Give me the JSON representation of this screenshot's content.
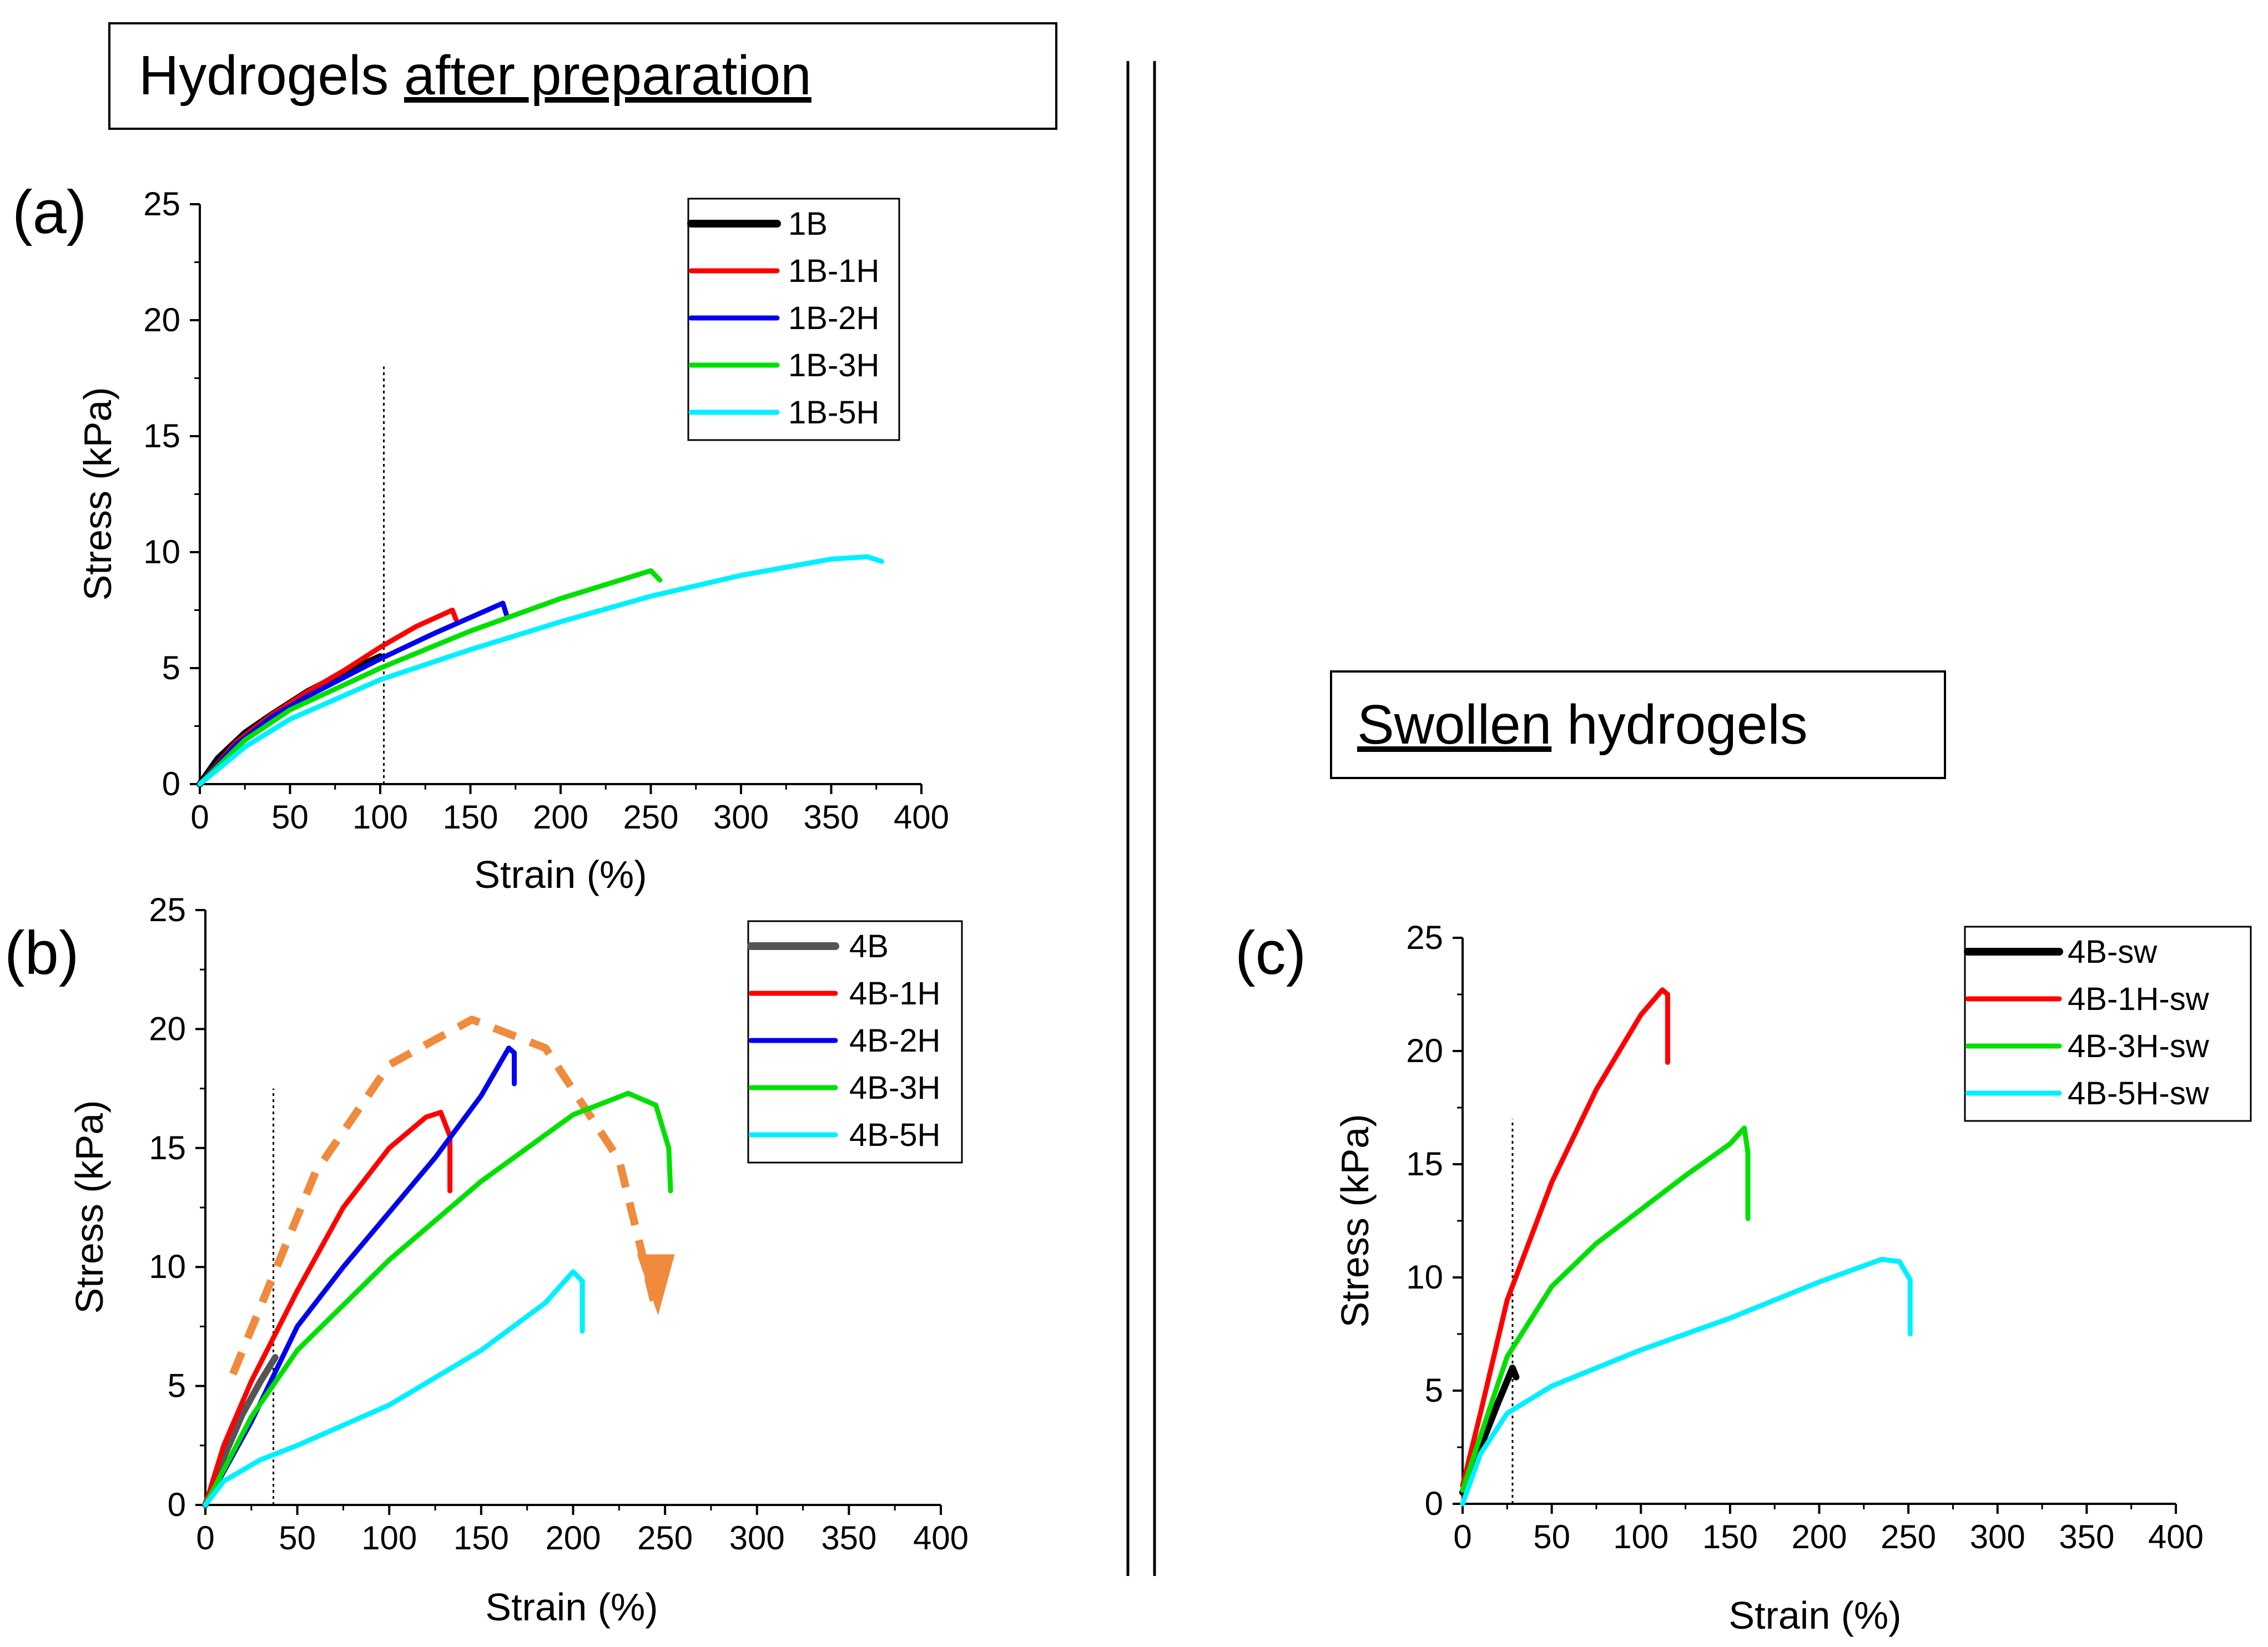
{
  "headers": {
    "left": {
      "underlined_part": "after preparation",
      "plain_part": "Hydrogels "
    },
    "right": {
      "underlined_part": "Swollen",
      "plain_part": " hydrogels"
    }
  },
  "colors": {
    "black": "#000000",
    "gray": "#555555",
    "red": "#ff0000",
    "blue": "#0000ee",
    "green": "#00e000",
    "cyan": "#00f0ff",
    "orange": "#f08a3c"
  },
  "chart_data": [
    {
      "panel": "(a)",
      "type": "line",
      "xlabel": "Strain (%)",
      "ylabel": "Stress (kPa)",
      "xlim": [
        0,
        400
      ],
      "ylim": [
        0,
        25
      ],
      "xticks": [
        "0",
        "50",
        "100",
        "150",
        "200",
        "250",
        "300",
        "350",
        "400"
      ],
      "yticks": [
        "0",
        "5",
        "10",
        "15",
        "20",
        "25"
      ],
      "ref_line": {
        "x": 102,
        "y_top": 18
      },
      "legend_position": "top-right",
      "series": [
        {
          "name": "1B",
          "color": "black",
          "x": [
            0,
            10,
            25,
            40,
            60,
            80,
            100
          ],
          "y": [
            0,
            1.1,
            2.2,
            3.0,
            4.0,
            4.8,
            5.5
          ]
        },
        {
          "name": "1B-1H",
          "color": "red",
          "x": [
            0,
            20,
            40,
            60,
            80,
            100,
            120,
            140,
            142
          ],
          "y": [
            0,
            1.8,
            3.0,
            4.0,
            4.9,
            5.9,
            6.8,
            7.5,
            7.1
          ]
        },
        {
          "name": "1B-2H",
          "color": "blue",
          "x": [
            0,
            20,
            40,
            60,
            80,
            100,
            130,
            168,
            170
          ],
          "y": [
            0,
            1.7,
            2.9,
            3.8,
            4.6,
            5.4,
            6.5,
            7.8,
            7.3
          ]
        },
        {
          "name": "1B-3H",
          "color": "green",
          "x": [
            0,
            25,
            50,
            100,
            150,
            200,
            250,
            255
          ],
          "y": [
            0,
            1.9,
            3.2,
            5.0,
            6.6,
            8.0,
            9.2,
            8.8
          ]
        },
        {
          "name": "1B-5H",
          "color": "cyan",
          "x": [
            0,
            25,
            50,
            100,
            150,
            200,
            250,
            300,
            350,
            370,
            378
          ],
          "y": [
            0,
            1.6,
            2.8,
            4.5,
            5.8,
            7.0,
            8.1,
            9.0,
            9.7,
            9.8,
            9.6
          ]
        }
      ]
    },
    {
      "panel": "(b)",
      "type": "line",
      "xlabel": "Strain (%)",
      "ylabel": "Stress (kPa)",
      "xlim": [
        0,
        400
      ],
      "ylim": [
        0,
        25
      ],
      "xticks": [
        "0",
        "50",
        "100",
        "150",
        "200",
        "250",
        "300",
        "350",
        "400"
      ],
      "yticks": [
        "0",
        "5",
        "10",
        "15",
        "20",
        "25"
      ],
      "ref_line": {
        "x": 37,
        "y_top": 17.5
      },
      "legend_position": "top-right",
      "trend_arrow": {
        "x": [
          15,
          60,
          100,
          145,
          185,
          225,
          245
        ],
        "y": [
          5.5,
          14,
          18.5,
          20.4,
          19.2,
          14.5,
          8.2
        ]
      },
      "series": [
        {
          "name": "4B",
          "color": "gray",
          "x": [
            0,
            10,
            20,
            30,
            38
          ],
          "y": [
            0,
            2.0,
            3.8,
            5.2,
            6.2
          ]
        },
        {
          "name": "4B-1H",
          "color": "red",
          "x": [
            0,
            10,
            25,
            50,
            75,
            100,
            120,
            128,
            133,
            133
          ],
          "y": [
            0,
            2.5,
            5.2,
            9.0,
            12.5,
            15.0,
            16.3,
            16.5,
            15.5,
            13.2
          ]
        },
        {
          "name": "4B-2H",
          "color": "blue",
          "x": [
            0,
            25,
            50,
            75,
            100,
            125,
            150,
            165,
            168,
            168
          ],
          "y": [
            0,
            3.5,
            7.5,
            10.0,
            12.3,
            14.6,
            17.2,
            19.2,
            19.0,
            17.7
          ]
        },
        {
          "name": "4B-3H",
          "color": "green",
          "x": [
            0,
            25,
            50,
            100,
            150,
            200,
            230,
            245,
            252,
            253
          ],
          "y": [
            0,
            3.7,
            6.5,
            10.3,
            13.6,
            16.4,
            17.3,
            16.8,
            15.0,
            13.2
          ]
        },
        {
          "name": "4B-5H",
          "color": "cyan",
          "x": [
            0,
            10,
            30,
            50,
            100,
            150,
            185,
            200,
            205,
            205
          ],
          "y": [
            0,
            1.0,
            1.9,
            2.5,
            4.2,
            6.5,
            8.5,
            9.8,
            9.4,
            7.3
          ]
        }
      ]
    },
    {
      "panel": "(c)",
      "type": "line",
      "xlabel": "Strain (%)",
      "ylabel": "Stress (kPa)",
      "xlim": [
        0,
        400
      ],
      "ylim": [
        0,
        25
      ],
      "xticks": [
        "0",
        "50",
        "100",
        "150",
        "200",
        "250",
        "300",
        "350",
        "400"
      ],
      "yticks": [
        "0",
        "5",
        "10",
        "15",
        "20",
        "25"
      ],
      "ref_line": {
        "x": 28,
        "y_top": 17
      },
      "legend_position": "top-right",
      "series": [
        {
          "name": "4B-sw",
          "color": "black",
          "x": [
            0,
            10,
            20,
            28,
            30
          ],
          "y": [
            0.5,
            2.5,
            4.5,
            6.0,
            5.6
          ]
        },
        {
          "name": "4B-1H-sw",
          "color": "red",
          "x": [
            0,
            10,
            25,
            50,
            75,
            100,
            112,
            115,
            115
          ],
          "y": [
            0.8,
            4.0,
            9.0,
            14.2,
            18.3,
            21.6,
            22.7,
            22.5,
            19.5
          ]
        },
        {
          "name": "4B-3H-sw",
          "color": "green",
          "x": [
            0,
            10,
            25,
            50,
            75,
            100,
            125,
            150,
            158,
            160,
            160
          ],
          "y": [
            0.6,
            3.0,
            6.5,
            9.6,
            11.5,
            13.0,
            14.5,
            15.9,
            16.6,
            15.5,
            12.6
          ]
        },
        {
          "name": "4B-5H-sw",
          "color": "cyan",
          "x": [
            0,
            10,
            25,
            50,
            75,
            100,
            150,
            200,
            235,
            245,
            251,
            251
          ],
          "y": [
            0,
            2.2,
            4.0,
            5.2,
            6.0,
            6.8,
            8.2,
            9.8,
            10.8,
            10.7,
            9.9,
            7.5
          ]
        }
      ]
    }
  ]
}
